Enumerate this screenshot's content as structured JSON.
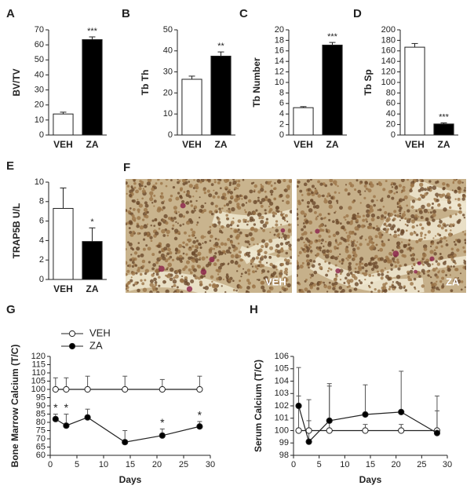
{
  "chart_data": [
    {
      "type": "bar",
      "panel": "A",
      "ylabel": "BV/TV",
      "categories": [
        "VEH",
        "ZA"
      ],
      "values": [
        14,
        63.5
      ],
      "errors": [
        1.2,
        1.8
      ],
      "colors": [
        "#ffffff",
        "#000000"
      ],
      "ylim": [
        0,
        70
      ],
      "yticks": [
        0,
        10,
        20,
        30,
        40,
        50,
        60,
        70
      ],
      "annotations": [
        {
          "text": "***",
          "category": "ZA"
        }
      ]
    },
    {
      "type": "bar",
      "panel": "B",
      "ylabel": "Tb Th",
      "categories": [
        "VEH",
        "ZA"
      ],
      "values": [
        26.5,
        37.5
      ],
      "errors": [
        1.5,
        2
      ],
      "colors": [
        "#ffffff",
        "#000000"
      ],
      "ylim": [
        0,
        50
      ],
      "yticks": [
        0,
        10,
        20,
        30,
        40,
        50
      ],
      "annotations": [
        {
          "text": "**",
          "category": "ZA"
        }
      ]
    },
    {
      "type": "bar",
      "panel": "C",
      "ylabel": "Tb Number",
      "categories": [
        "VEH",
        "ZA"
      ],
      "values": [
        5.2,
        17.1
      ],
      "errors": [
        0.2,
        0.5
      ],
      "colors": [
        "#ffffff",
        "#000000"
      ],
      "ylim": [
        0,
        20
      ],
      "yticks": [
        0,
        2,
        4,
        6,
        8,
        10,
        12,
        14,
        16,
        18,
        20
      ],
      "annotations": [
        {
          "text": "***",
          "category": "ZA"
        }
      ]
    },
    {
      "type": "bar",
      "panel": "D",
      "ylabel": "Tb Sp",
      "categories": [
        "VEH",
        "ZA"
      ],
      "values": [
        167,
        21
      ],
      "errors": [
        7,
        2
      ],
      "colors": [
        "#ffffff",
        "#000000"
      ],
      "ylim": [
        0,
        200
      ],
      "yticks": [
        0,
        20,
        40,
        60,
        80,
        100,
        120,
        140,
        160,
        180,
        200
      ],
      "annotations": [
        {
          "text": "***",
          "category": "ZA"
        }
      ]
    },
    {
      "type": "bar",
      "panel": "E",
      "ylabel": "TRAP5B U/L",
      "categories": [
        "VEH",
        "ZA"
      ],
      "values": [
        7.3,
        3.9
      ],
      "errors": [
        2.1,
        1.4
      ],
      "colors": [
        "#ffffff",
        "#000000"
      ],
      "ylim": [
        0,
        10
      ],
      "yticks": [
        0,
        2,
        4,
        6,
        8,
        10
      ],
      "annotations": [
        {
          "text": "*",
          "category": "ZA"
        }
      ]
    },
    {
      "type": "line",
      "panel": "G",
      "ylabel": "Bone Marrow Calcium (T/C)",
      "xlabel": "Days",
      "legend": "upper left",
      "xlim": [
        0,
        30
      ],
      "xticks": [
        0,
        5,
        10,
        15,
        20,
        25,
        30
      ],
      "ylim": [
        60,
        120
      ],
      "yticks": [
        60,
        65,
        70,
        75,
        80,
        85,
        90,
        95,
        100,
        105,
        110,
        115,
        120
      ],
      "x": [
        1,
        3,
        7,
        14,
        21,
        28
      ],
      "series": [
        {
          "name": "VEH",
          "color": "#ffffff",
          "values": [
            100,
            100,
            100,
            100,
            100,
            100
          ],
          "errors": [
            7,
            7,
            8,
            8,
            6,
            8
          ]
        },
        {
          "name": "ZA",
          "color": "#000000",
          "values": [
            82,
            78,
            83,
            68,
            72,
            77.5
          ],
          "errors": [
            3,
            7,
            5,
            7,
            4,
            3
          ]
        }
      ],
      "annotations": [
        {
          "text": "*",
          "x": 1
        },
        {
          "text": "*",
          "x": 3
        },
        {
          "text": "*",
          "x": 21
        },
        {
          "text": "*",
          "x": 28
        }
      ]
    },
    {
      "type": "line",
      "panel": "H",
      "ylabel": "Serum Calcium (T/C)",
      "xlabel": "Days",
      "xlim": [
        0,
        30
      ],
      "xticks": [
        0,
        5,
        10,
        15,
        20,
        25,
        30
      ],
      "ylim": [
        98,
        106
      ],
      "yticks": [
        98,
        99,
        100,
        101,
        102,
        103,
        104,
        105,
        106
      ],
      "x": [
        1,
        3,
        7,
        14,
        21,
        28
      ],
      "series": [
        {
          "name": "VEH",
          "color": "#ffffff",
          "values": [
            100,
            100,
            100,
            100,
            100,
            100
          ],
          "errors": [
            2.8,
            0.8,
            3.6,
            0.5,
            0.5,
            2.8
          ]
        },
        {
          "name": "ZA",
          "color": "#000000",
          "values": [
            102,
            99.1,
            100.8,
            101.3,
            101.5,
            99.8
          ],
          "errors": [
            3.1,
            3.4,
            3,
            2.4,
            3.3,
            1.8
          ]
        }
      ]
    }
  ],
  "images": {
    "panel": "F",
    "labels": [
      "VEH",
      "ZA"
    ]
  }
}
